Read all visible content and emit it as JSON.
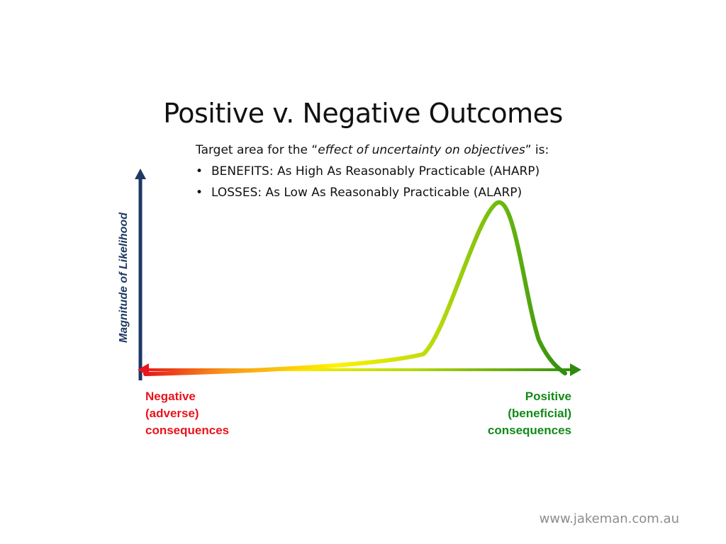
{
  "title": "Positive v. Negative Outcomes",
  "intro": {
    "lead_before": "Target area for the “",
    "lead_emphasis": "effect of uncertainty on objectives",
    "lead_after": "” is:",
    "bullets": [
      "BENEFITS: As High As Reasonably Practicable (AHARP)",
      "LOSSES:  As Low As Reasonably Practicable (ALARP)"
    ],
    "bullet_glyph": "•"
  },
  "axes": {
    "y_label": "Magnitude of Likelihood"
  },
  "captions": {
    "negative": [
      "Negative",
      "(adverse)",
      "consequences"
    ],
    "positive": [
      "Positive",
      "(beneficial)",
      "consequences"
    ]
  },
  "footer": "www.jakeman.com.au",
  "colors": {
    "y_axis": "#1f3864",
    "negative": "#e8141b",
    "positive": "#118a18",
    "gradient_red": "#e8141b",
    "gradient_orange": "#f7941d",
    "gradient_yellow": "#fff200",
    "gradient_lightgreen": "#b5d80e",
    "gradient_green": "#2e8b0e"
  }
}
